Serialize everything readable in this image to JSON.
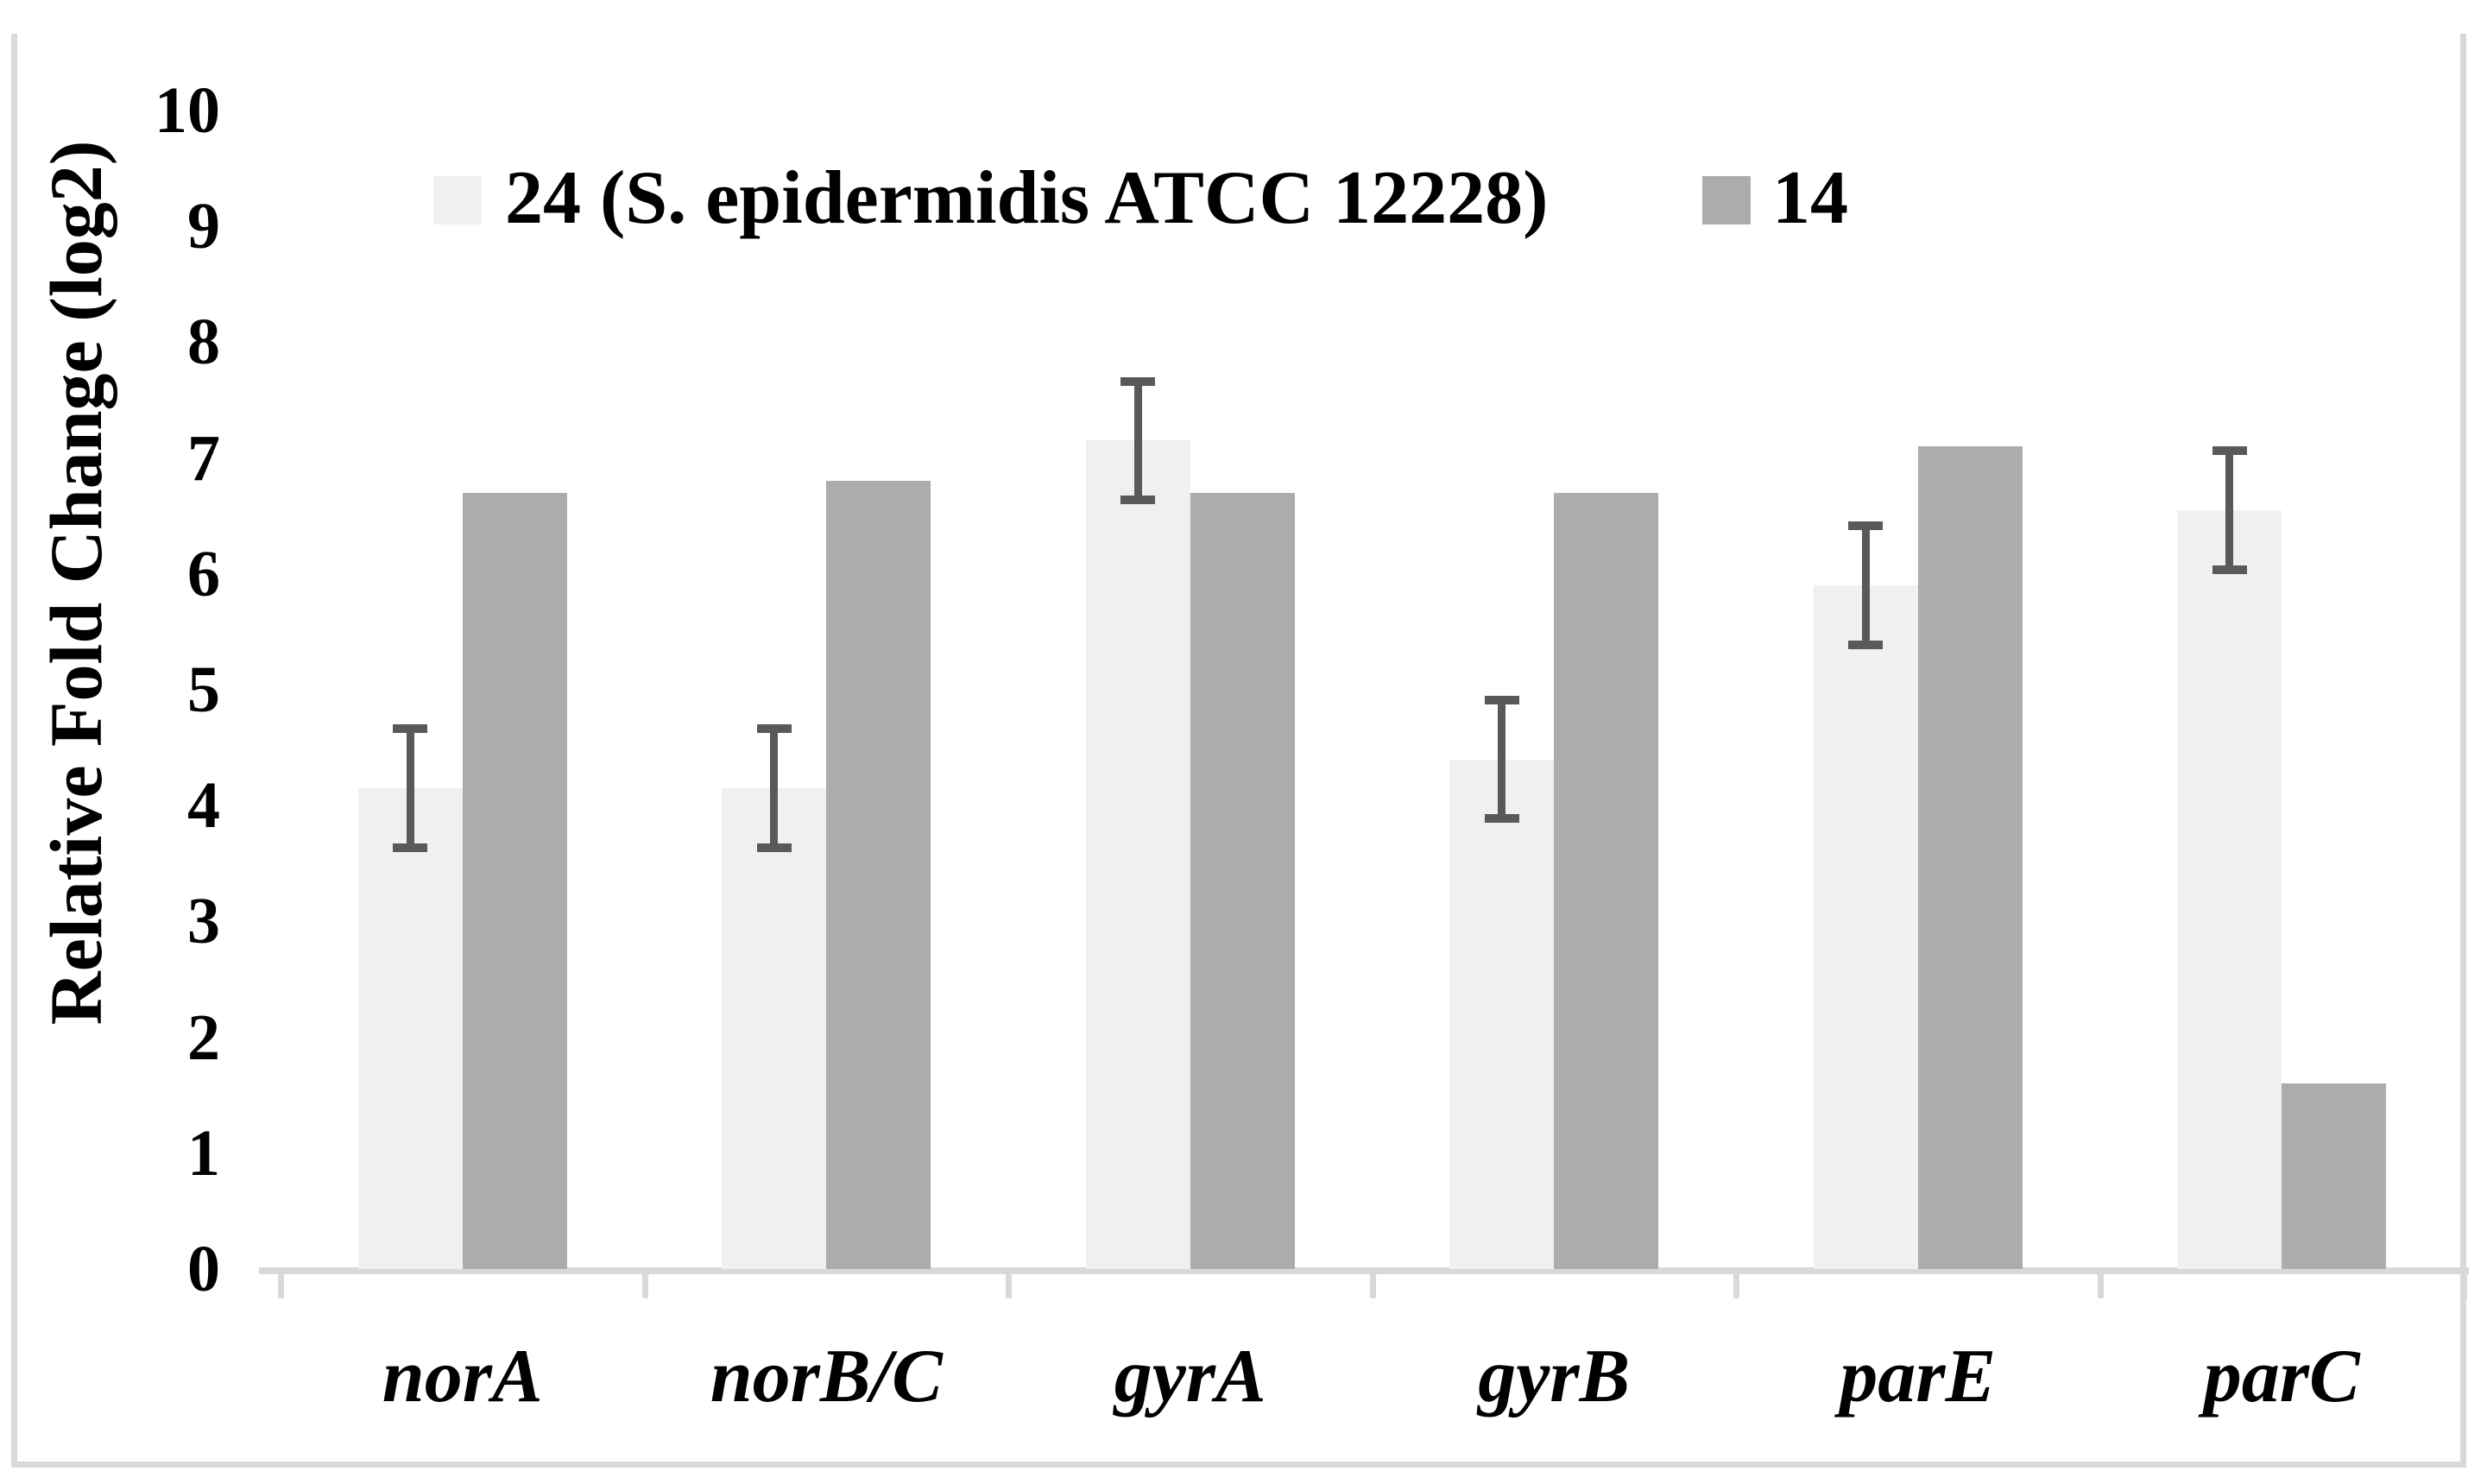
{
  "chart_data": {
    "type": "bar",
    "title": "",
    "xlabel": "",
    "ylabel": "Relative Fold Change (log2)",
    "ylim": [
      0,
      10
    ],
    "yticks": [
      0,
      1,
      2,
      3,
      4,
      5,
      6,
      7,
      8,
      9,
      10
    ],
    "grid": false,
    "legend_position": "top",
    "categories": [
      "norA",
      "norB/C",
      "gyrA",
      "gyrB",
      "parE",
      "parC"
    ],
    "series": [
      {
        "name": "24 (S. epidermidis ATCC 12228)",
        "color": "#f1f0f0",
        "values": [
          4.15,
          4.15,
          7.15,
          4.4,
          5.9,
          6.55
        ],
        "error_bars": [
          0.55,
          0.55,
          0.55,
          0.55,
          0.55,
          0.55
        ]
      },
      {
        "name": "14",
        "color": "#aeabab",
        "values": [
          6.7,
          6.8,
          6.7,
          6.7,
          7.1,
          1.6
        ],
        "error_bars": null
      }
    ],
    "error_bar_color": "#595959",
    "axis_line_color": "#d9d9d9",
    "text_color": "#000000"
  }
}
